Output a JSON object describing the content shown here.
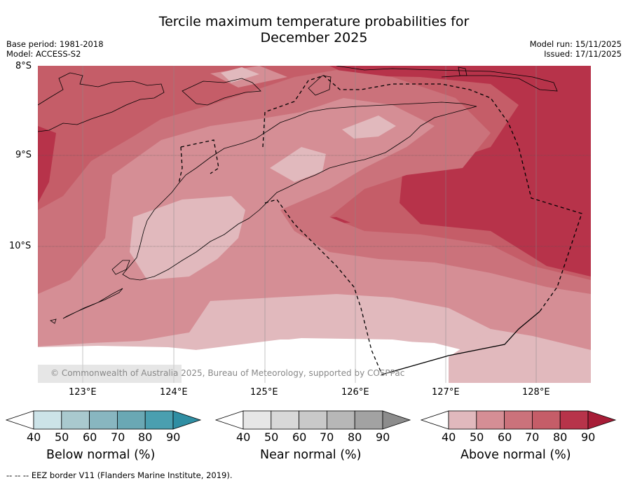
{
  "title_line1": "Tercile maximum temperature probabilities for",
  "title_line2": "December 2025",
  "base_period": "Base period: 1981-2018",
  "model": "Model: ACCESS-S2",
  "model_run": "Model run: 15/11/2025",
  "issued": "Issued: 17/11/2025",
  "lat_labels": [
    "8°S",
    "9°S",
    "10°S"
  ],
  "lon_labels": [
    "123°E",
    "124°E",
    "125°E",
    "126°E",
    "127°E",
    "128°E"
  ],
  "copyright": "© Commonwealth of Australia 2025, Bureau of Meteorology, supported by COSPPac",
  "colorbars": [
    {
      "label": "Below normal (%)",
      "ticks": [
        "40",
        "50",
        "60",
        "70",
        "80",
        "90"
      ],
      "colors": [
        "#ffffff",
        "#cce3e8",
        "#a9c9ce",
        "#88b6c0",
        "#6aa8b4",
        "#4a9fb0",
        "#2f8ea3"
      ]
    },
    {
      "label": "Near normal (%)",
      "ticks": [
        "40",
        "50",
        "60",
        "70",
        "80",
        "90"
      ],
      "colors": [
        "#ffffff",
        "#e6e6e6",
        "#d8d8d8",
        "#c9c9c9",
        "#b7b7b7",
        "#a2a2a2",
        "#8c8c8c"
      ]
    },
    {
      "label": "Above normal (%)",
      "ticks": [
        "40",
        "50",
        "60",
        "70",
        "80",
        "90"
      ],
      "colors": [
        "#ffffff",
        "#e1b9bd",
        "#d58e95",
        "#cb727b",
        "#c55d68",
        "#b7334a",
        "#a71d37"
      ]
    }
  ],
  "footnote": "-- -- -- EEZ border V11 (Flanders Marine Institute, 2019).",
  "map_colors": {
    "c40": "#e1b9bd",
    "c50": "#d58e95",
    "c60": "#cb727b",
    "c70": "#c55d68",
    "c80": "#b7334a",
    "white": "#ffffff"
  }
}
